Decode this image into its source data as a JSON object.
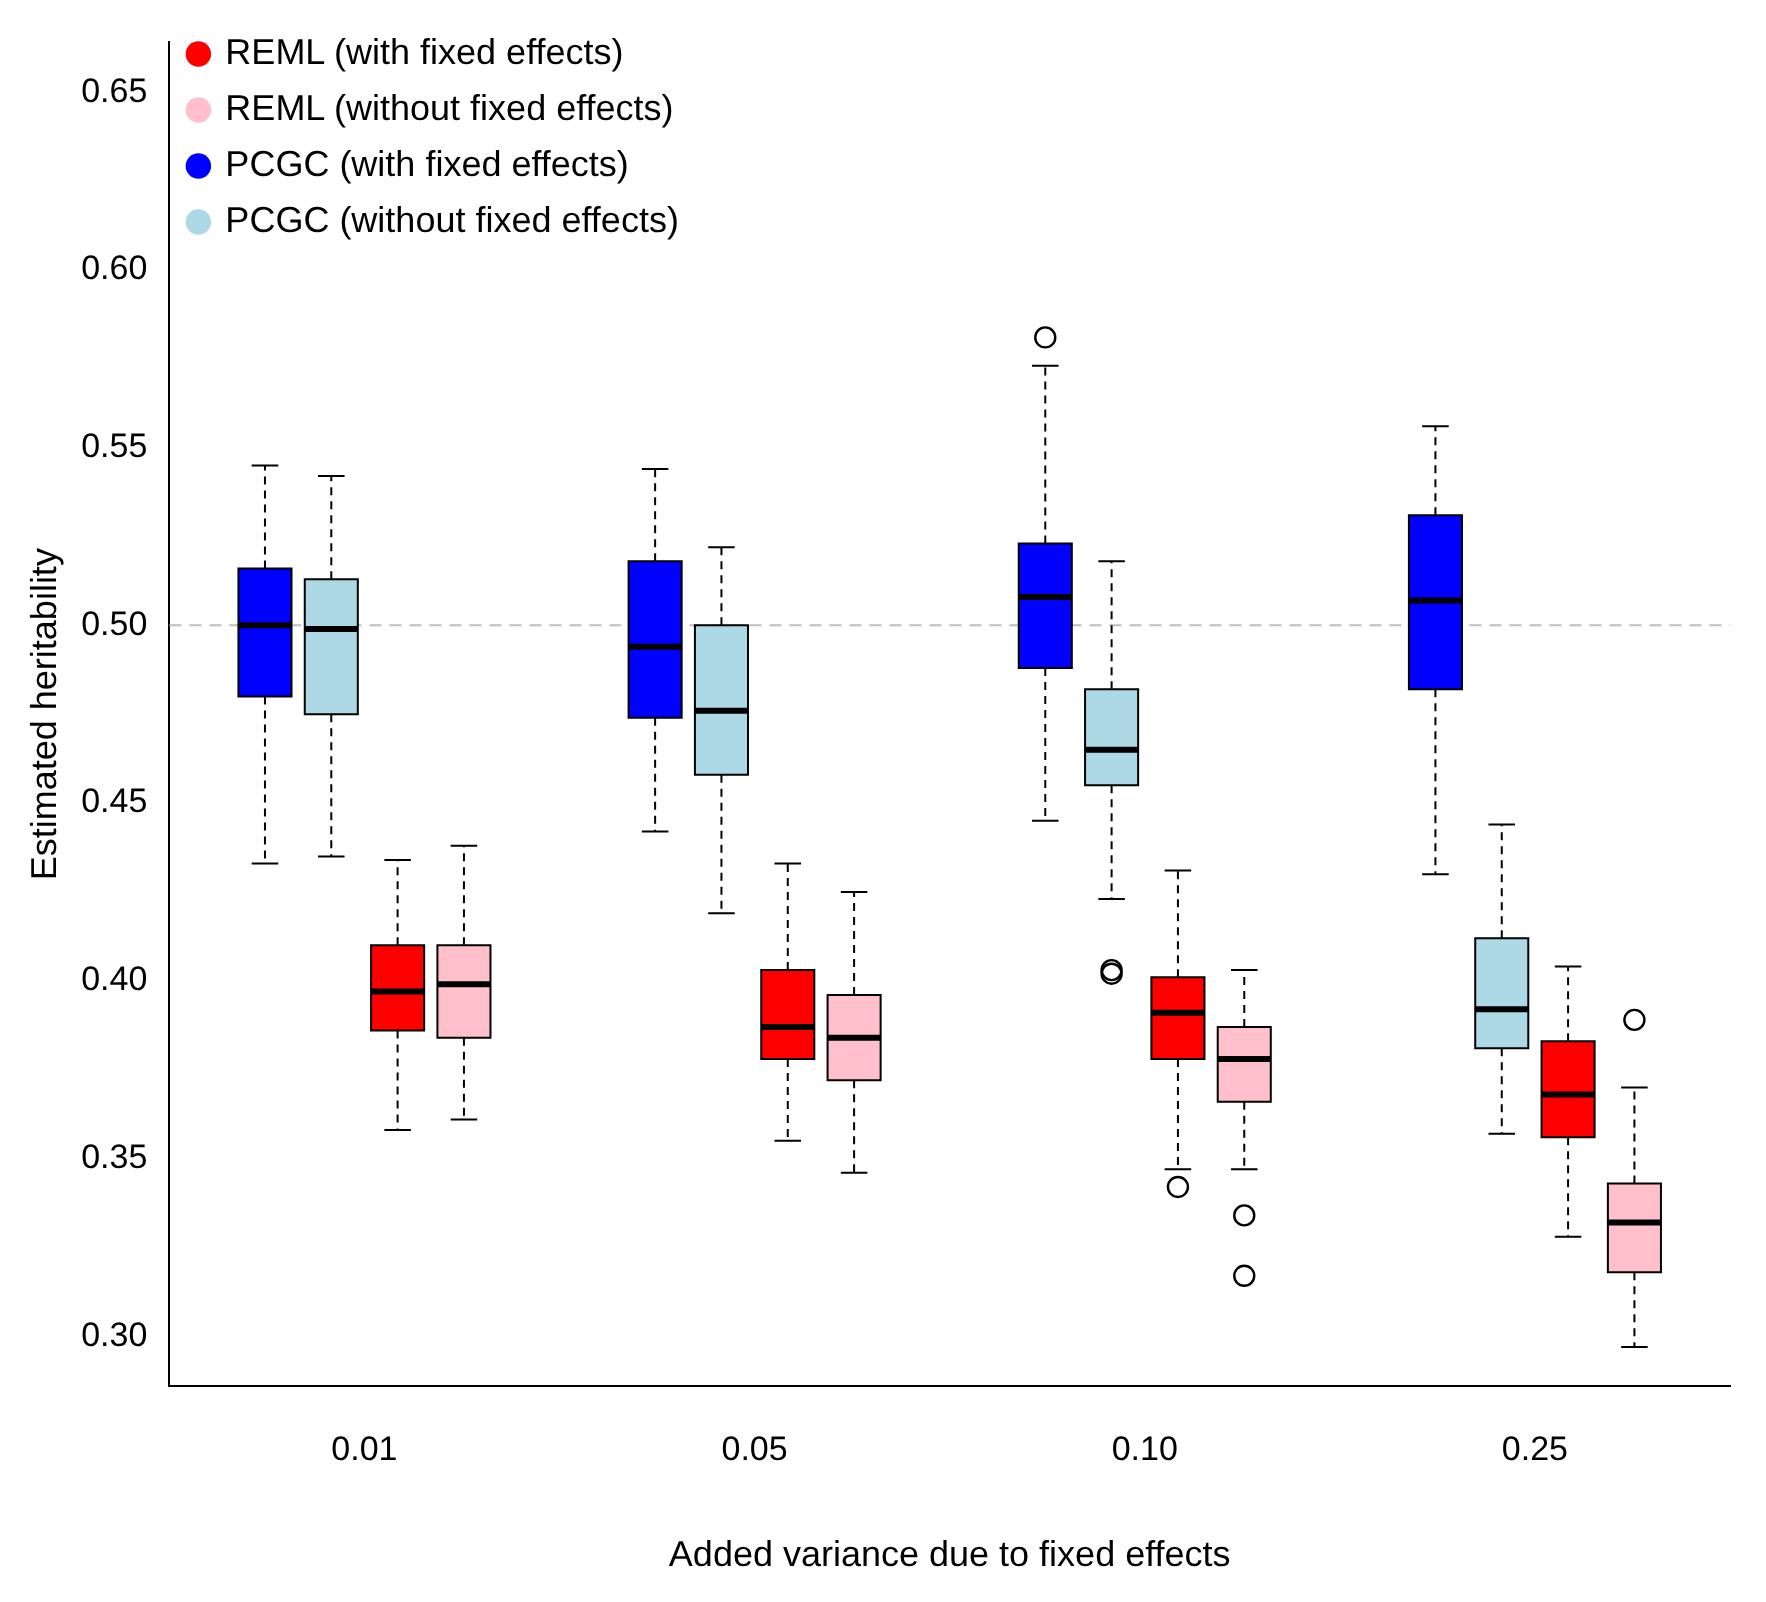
{
  "chart_data": {
    "type": "box",
    "xlabel": "Added variance due to fixed effects",
    "ylabel": "Estimated heritability",
    "categories": [
      "0.01",
      "0.05",
      "0.10",
      "0.25"
    ],
    "ylim": [
      0.286,
      0.664
    ],
    "yticks": [
      {
        "value": 0.3,
        "label": "0.30"
      },
      {
        "value": 0.35,
        "label": "0.35"
      },
      {
        "value": 0.4,
        "label": "0.40"
      },
      {
        "value": 0.45,
        "label": "0.45"
      },
      {
        "value": 0.5,
        "label": "0.50"
      },
      {
        "value": 0.55,
        "label": "0.55"
      },
      {
        "value": 0.6,
        "label": "0.60"
      },
      {
        "value": 0.65,
        "label": "0.65"
      }
    ],
    "grid": false,
    "legend": "top left",
    "ref_lines": [
      {
        "axis": "y",
        "value": 0.5,
        "color": "#bebebe",
        "line_style": "dashed"
      }
    ],
    "series": [
      {
        "name": "PCGC (with fixed effects)",
        "color": "#0000ff",
        "boxes": [
          {
            "low": 0.433,
            "q1": 0.48,
            "median": 0.5,
            "q3": 0.516,
            "high": 0.545
          },
          {
            "low": 0.442,
            "q1": 0.474,
            "median": 0.494,
            "q3": 0.518,
            "high": 0.544
          },
          {
            "low": 0.445,
            "q1": 0.488,
            "median": 0.508,
            "q3": 0.523,
            "high": 0.573,
            "outliers": [
              0.581
            ]
          },
          {
            "low": 0.43,
            "q1": 0.482,
            "median": 0.507,
            "q3": 0.531,
            "high": 0.556
          }
        ]
      },
      {
        "name": "PCGC (without fixed effects)",
        "color": "#add8e6",
        "boxes": [
          {
            "low": 0.435,
            "q1": 0.475,
            "median": 0.499,
            "q3": 0.513,
            "high": 0.542
          },
          {
            "low": 0.419,
            "q1": 0.458,
            "median": 0.476,
            "q3": 0.5,
            "high": 0.522
          },
          {
            "low": 0.423,
            "q1": 0.455,
            "median": 0.465,
            "q3": 0.482,
            "high": 0.518,
            "outliers": [
              0.403,
              0.402
            ]
          },
          {
            "low": 0.357,
            "q1": 0.381,
            "median": 0.392,
            "q3": 0.412,
            "high": 0.444
          }
        ]
      },
      {
        "name": "REML (with fixed effects)",
        "color": "#ff0000",
        "boxes": [
          {
            "low": 0.358,
            "q1": 0.386,
            "median": 0.397,
            "q3": 0.41,
            "high": 0.434
          },
          {
            "low": 0.355,
            "q1": 0.378,
            "median": 0.387,
            "q3": 0.403,
            "high": 0.433
          },
          {
            "low": 0.347,
            "q1": 0.378,
            "median": 0.391,
            "q3": 0.401,
            "high": 0.431,
            "outliers": [
              0.342
            ]
          },
          {
            "low": 0.328,
            "q1": 0.356,
            "median": 0.368,
            "q3": 0.383,
            "high": 0.404
          }
        ]
      },
      {
        "name": "REML (without fixed effects)",
        "color": "#ffc0cb",
        "boxes": [
          {
            "low": 0.361,
            "q1": 0.384,
            "median": 0.399,
            "q3": 0.41,
            "high": 0.438
          },
          {
            "low": 0.346,
            "q1": 0.372,
            "median": 0.384,
            "q3": 0.396,
            "high": 0.425
          },
          {
            "low": 0.347,
            "q1": 0.366,
            "median": 0.378,
            "q3": 0.387,
            "high": 0.403,
            "outliers": [
              0.334,
              0.317
            ]
          },
          {
            "low": 0.297,
            "q1": 0.318,
            "median": 0.332,
            "q3": 0.343,
            "high": 0.37,
            "outliers": [
              0.389
            ]
          }
        ]
      }
    ]
  }
}
